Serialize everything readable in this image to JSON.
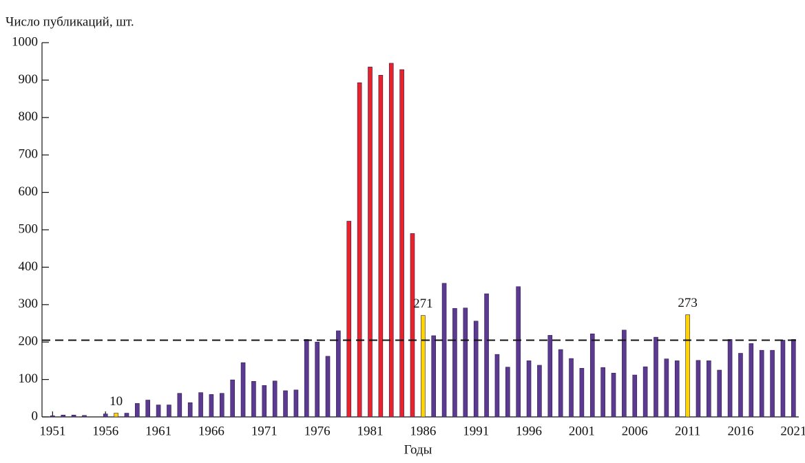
{
  "chart_data": {
    "type": "bar",
    "y_label": "Число публикаций, шт.",
    "x_label": "Годы",
    "x": [
      1951,
      1952,
      1953,
      1954,
      1955,
      1956,
      1957,
      1958,
      1959,
      1960,
      1961,
      1962,
      1963,
      1964,
      1965,
      1966,
      1967,
      1968,
      1969,
      1970,
      1971,
      1972,
      1973,
      1974,
      1975,
      1976,
      1977,
      1978,
      1979,
      1980,
      1981,
      1982,
      1983,
      1984,
      1985,
      1986,
      1987,
      1988,
      1989,
      1990,
      1991,
      1992,
      1993,
      1994,
      1995,
      1996,
      1997,
      1998,
      1999,
      2000,
      2001,
      2002,
      2003,
      2004,
      2005,
      2006,
      2007,
      2008,
      2009,
      2010,
      2011,
      2012,
      2013,
      2014,
      2015,
      2016,
      2017,
      2018,
      2019,
      2020,
      2021
    ],
    "values": [
      3,
      5,
      5,
      4,
      0,
      8,
      10,
      10,
      36,
      45,
      32,
      32,
      63,
      38,
      65,
      60,
      63,
      99,
      145,
      95,
      84,
      96,
      70,
      72,
      207,
      200,
      162,
      230,
      523,
      893,
      935,
      913,
      945,
      928,
      490,
      271,
      217,
      357,
      290,
      291,
      256,
      329,
      167,
      133,
      348,
      150,
      138,
      218,
      180,
      156,
      130,
      222,
      132,
      117,
      232,
      112,
      134,
      213,
      155,
      150,
      273,
      151,
      150,
      125,
      207,
      170,
      196,
      178,
      178,
      205,
      207
    ],
    "colors": [
      "#5b3a8f",
      "#5b3a8f",
      "#5b3a8f",
      "#5b3a8f",
      "#5b3a8f",
      "#5b3a8f",
      "#ffd400",
      "#5b3a8f",
      "#5b3a8f",
      "#5b3a8f",
      "#5b3a8f",
      "#5b3a8f",
      "#5b3a8f",
      "#5b3a8f",
      "#5b3a8f",
      "#5b3a8f",
      "#5b3a8f",
      "#5b3a8f",
      "#5b3a8f",
      "#5b3a8f",
      "#5b3a8f",
      "#5b3a8f",
      "#5b3a8f",
      "#5b3a8f",
      "#5b3a8f",
      "#5b3a8f",
      "#5b3a8f",
      "#5b3a8f",
      "#e8232a",
      "#e8232a",
      "#e8232a",
      "#e8232a",
      "#e8232a",
      "#e8232a",
      "#e8232a",
      "#ffd400",
      "#5b3a8f",
      "#5b3a8f",
      "#5b3a8f",
      "#5b3a8f",
      "#5b3a8f",
      "#5b3a8f",
      "#5b3a8f",
      "#5b3a8f",
      "#5b3a8f",
      "#5b3a8f",
      "#5b3a8f",
      "#5b3a8f",
      "#5b3a8f",
      "#5b3a8f",
      "#5b3a8f",
      "#5b3a8f",
      "#5b3a8f",
      "#5b3a8f",
      "#5b3a8f",
      "#5b3a8f",
      "#5b3a8f",
      "#5b3a8f",
      "#5b3a8f",
      "#5b3a8f",
      "#ffd400",
      "#5b3a8f",
      "#5b3a8f",
      "#5b3a8f",
      "#5b3a8f",
      "#5b3a8f",
      "#5b3a8f",
      "#5b3a8f",
      "#5b3a8f",
      "#5b3a8f",
      "#5b3a8f"
    ],
    "value_labels": [
      null,
      null,
      null,
      null,
      null,
      null,
      "10",
      null,
      null,
      null,
      null,
      null,
      null,
      null,
      null,
      null,
      null,
      null,
      null,
      null,
      null,
      null,
      null,
      null,
      null,
      null,
      null,
      null,
      null,
      null,
      null,
      null,
      null,
      null,
      null,
      "271",
      null,
      null,
      null,
      null,
      null,
      null,
      null,
      null,
      null,
      null,
      null,
      null,
      null,
      null,
      null,
      null,
      null,
      null,
      null,
      null,
      null,
      null,
      null,
      null,
      "273",
      null,
      null,
      null,
      null,
      null,
      null,
      null,
      null,
      null,
      null
    ],
    "reference_line": 205,
    "xlim": [
      1950,
      2021.5
    ],
    "xticks": [
      1951,
      1956,
      1961,
      1966,
      1971,
      1976,
      1981,
      1986,
      1991,
      1996,
      2001,
      2006,
      2011,
      2016,
      2021
    ],
    "ylim": [
      0,
      1000
    ],
    "yticks": [
      0,
      100,
      200,
      300,
      400,
      500,
      600,
      700,
      800,
      900,
      1000
    ]
  }
}
